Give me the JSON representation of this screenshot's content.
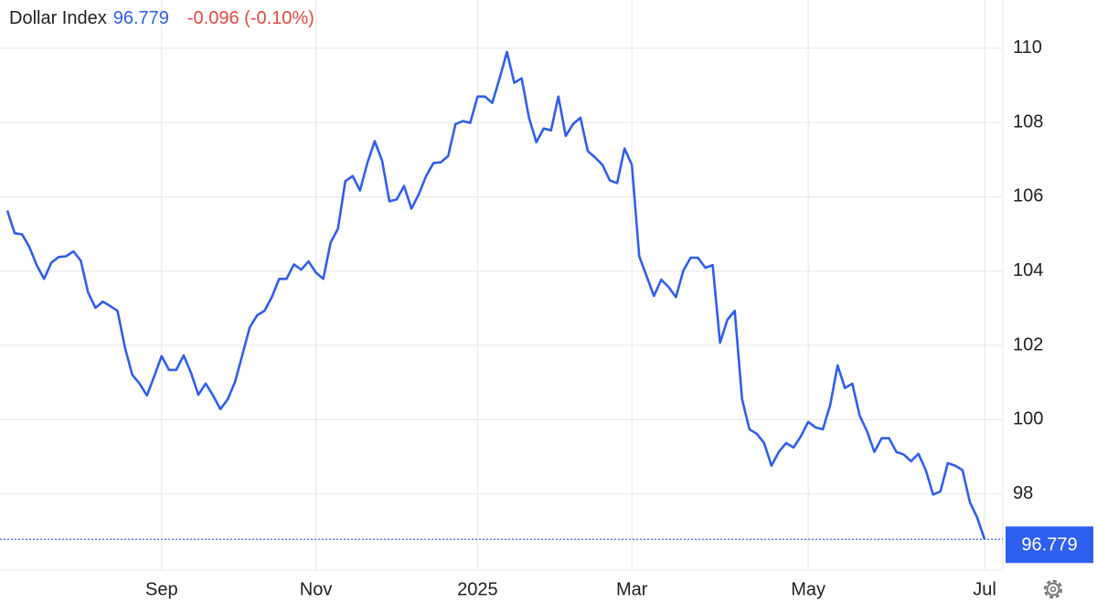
{
  "chart_data": {
    "type": "line",
    "title": "Dollar Index",
    "change": "-0.096 (-0.10%)",
    "categories": [
      null,
      null,
      null,
      null,
      null,
      null,
      null,
      null,
      null,
      null,
      null,
      null,
      null,
      null,
      null,
      null,
      null,
      null,
      null,
      null,
      null,
      "Sep",
      null,
      null,
      null,
      null,
      null,
      null,
      null,
      null,
      null,
      null,
      null,
      null,
      null,
      null,
      null,
      null,
      null,
      null,
      null,
      null,
      "Nov",
      null,
      null,
      null,
      null,
      null,
      null,
      null,
      null,
      null,
      null,
      null,
      null,
      null,
      null,
      null,
      null,
      null,
      null,
      null,
      null,
      null,
      "2025",
      null,
      null,
      null,
      null,
      null,
      null,
      null,
      null,
      null,
      null,
      null,
      null,
      null,
      null,
      null,
      null,
      null,
      null,
      null,
      null,
      "Mar",
      null,
      null,
      null,
      null,
      null,
      null,
      null,
      null,
      null,
      null,
      null,
      null,
      null,
      null,
      null,
      null,
      null,
      null,
      null,
      null,
      null,
      null,
      null,
      "May",
      null,
      null,
      null,
      null,
      null,
      null,
      null,
      null,
      null,
      null,
      null,
      null,
      null,
      null,
      null,
      null,
      null,
      null,
      null,
      null,
      null,
      null,
      null,
      "Jul"
    ],
    "series": [
      {
        "name": "Dollar Index",
        "color": "#2f5ff0",
        "values": [
          105.63,
          105.02,
          104.99,
          104.65,
          104.16,
          103.79,
          104.23,
          104.38,
          104.4,
          104.53,
          104.28,
          103.42,
          103.01,
          103.18,
          103.06,
          102.93,
          101.95,
          101.21,
          100.97,
          100.65,
          101.17,
          101.71,
          101.34,
          101.34,
          101.73,
          101.26,
          100.67,
          100.97,
          100.65,
          100.28,
          100.55,
          101.02,
          101.75,
          102.49,
          102.81,
          102.93,
          103.3,
          103.79,
          103.79,
          104.18,
          104.04,
          104.26,
          103.96,
          103.79,
          104.77,
          105.14,
          106.42,
          106.56,
          106.17,
          106.91,
          107.5,
          106.98,
          105.88,
          105.93,
          106.29,
          105.68,
          106.07,
          106.56,
          106.91,
          106.93,
          107.1,
          107.96,
          108.04,
          107.99,
          108.7,
          108.7,
          108.53,
          109.19,
          109.9,
          109.07,
          109.19,
          108.13,
          107.47,
          107.84,
          107.79,
          108.7,
          107.64,
          107.96,
          108.13,
          107.23,
          107.06,
          106.86,
          106.44,
          106.37,
          107.3,
          106.86,
          104.4,
          103.87,
          103.33,
          103.77,
          103.57,
          103.3,
          104.01,
          104.36,
          104.36,
          104.09,
          104.16,
          102.07,
          102.69,
          102.93,
          100.55,
          99.74,
          99.62,
          99.37,
          98.76,
          99.13,
          99.37,
          99.25,
          99.55,
          99.94,
          99.79,
          99.74,
          100.4,
          101.46,
          100.85,
          100.97,
          100.11,
          99.69,
          99.13,
          99.5,
          99.5,
          99.13,
          99.06,
          98.88,
          99.08,
          98.64,
          97.98,
          98.07,
          98.83,
          98.76,
          98.64,
          97.78,
          97.36,
          96.779
        ]
      }
    ],
    "change_color": "#e5483f",
    "ylim": [
      95.95,
      111.3
    ],
    "yticks": [
      98,
      100,
      102,
      104,
      106,
      108,
      110
    ],
    "grid": true
  }
}
